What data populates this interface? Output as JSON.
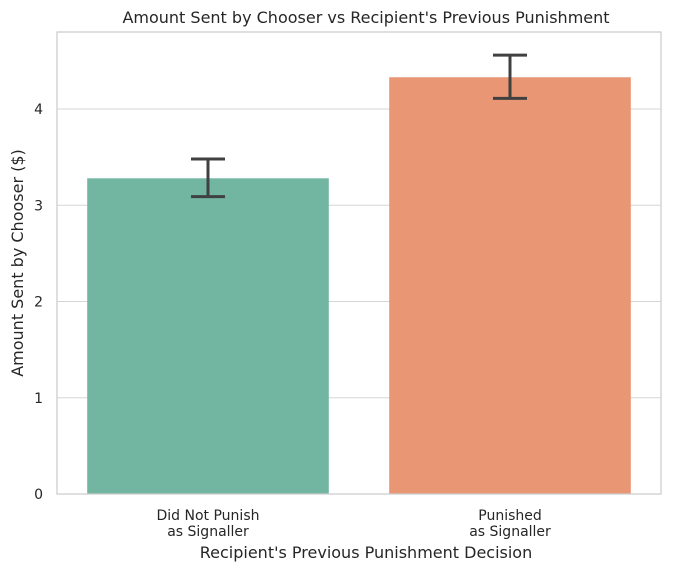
{
  "chart_data": {
    "type": "bar",
    "title": "Amount Sent by Chooser vs Recipient's Previous Punishment",
    "xlabel": "Recipient's Previous Punishment Decision",
    "ylabel": "Amount Sent by Chooser ($)",
    "categories": [
      [
        "Did Not Punish",
        "as Signaller"
      ],
      [
        "Punished",
        "as Signaller"
      ]
    ],
    "values": [
      3.28,
      4.33
    ],
    "error_bars": [
      {
        "low": 3.09,
        "high": 3.48
      },
      {
        "low": 4.11,
        "high": 4.56
      }
    ],
    "colors": [
      "#72b6a1",
      "#e99675"
    ],
    "ylim": [
      0,
      4.8
    ],
    "yticks": [
      "0",
      "1",
      "2",
      "3",
      "4"
    ],
    "grid": "horizontal",
    "legend": "none"
  }
}
